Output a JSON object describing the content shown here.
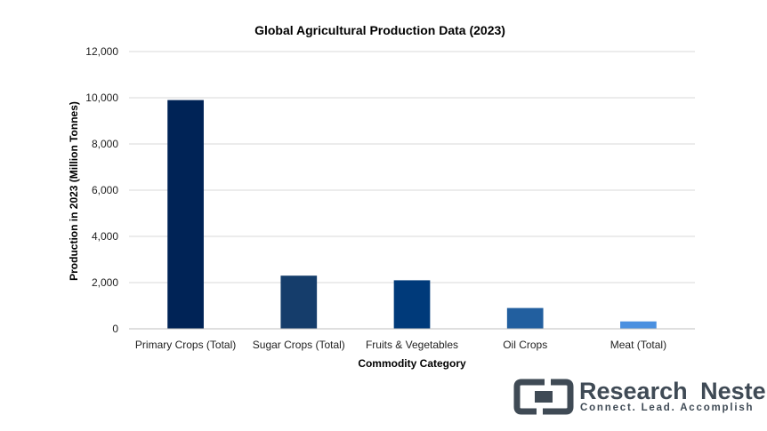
{
  "chart_data": {
    "type": "bar",
    "title": "Global Agricultural Production Data (2023)",
    "xlabel": "Commodity Category",
    "ylabel": "Production in 2023 (Million Tonnes)",
    "categories": [
      "Primary Crops (Total)",
      "Sugar Crops (Total)",
      "Fruits & Vegetables",
      "Oil Crops",
      "Meat (Total)"
    ],
    "values": [
      9900,
      2300,
      2100,
      900,
      320
    ],
    "colors": [
      "#002356",
      "#153d6b",
      "#003a7a",
      "#225f9f",
      "#4a90e0"
    ],
    "ylim": [
      0,
      12000
    ],
    "yticks": [
      0,
      2000,
      4000,
      6000,
      8000,
      10000,
      12000
    ],
    "ytick_labels": [
      "0",
      "2,000",
      "4,000",
      "6,000",
      "8,000",
      "10,000",
      "12,000"
    ],
    "grid": true,
    "legend": "none"
  },
  "logo": {
    "name_part1": "Research",
    "name_part2": "Nester",
    "tagline": "Connect. Lead. Accomplish"
  }
}
